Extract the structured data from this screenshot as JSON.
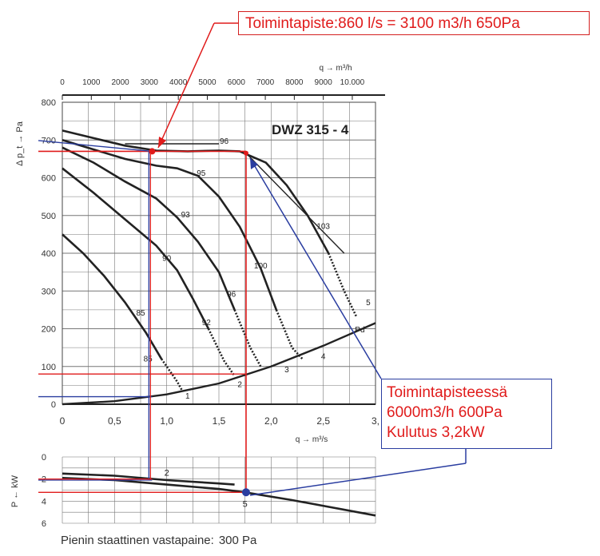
{
  "chart_data": {
    "type": "line",
    "title": "DWZ 315 - 4",
    "top_axis": {
      "label": "q → m³/h",
      "ticks": [
        "0",
        "1000",
        "2000",
        "3000",
        "4000",
        "5000",
        "6000",
        "7000",
        "8000",
        "9000",
        "10.000"
      ],
      "range": [
        0,
        10800
      ]
    },
    "bottom_axis": {
      "label": "q → m³/s",
      "ticks": [
        "0",
        "0,5",
        "1,0",
        "1,5",
        "2,0",
        "2,5",
        "3,"
      ],
      "range": [
        0,
        3.0
      ]
    },
    "pressure_axis": {
      "label": "Δ p_t → Pa",
      "ticks": [
        "0",
        "100",
        "200",
        "300",
        "400",
        "500",
        "600",
        "700",
        "800"
      ],
      "range": [
        0,
        800
      ]
    },
    "power_axis": {
      "label": "P ← kW",
      "ticks": [
        "0",
        "2",
        "4",
        "6"
      ],
      "range": [
        0,
        6
      ]
    },
    "pressure_curves": [
      {
        "id": "c5",
        "points": [
          [
            0,
            725
          ],
          [
            0.3,
            705
          ],
          [
            0.6,
            685
          ],
          [
            0.9,
            672
          ],
          [
            1.2,
            670
          ],
          [
            1.5,
            672
          ],
          [
            1.7,
            670
          ],
          [
            1.95,
            640
          ],
          [
            2.15,
            580
          ],
          [
            2.35,
            500
          ],
          [
            2.55,
            400
          ],
          [
            2.7,
            300
          ],
          [
            2.82,
            230
          ]
        ]
      },
      {
        "id": "c4",
        "points": [
          [
            0,
            700
          ],
          [
            0.3,
            675
          ],
          [
            0.6,
            650
          ],
          [
            0.9,
            632
          ],
          [
            1.1,
            625
          ],
          [
            1.3,
            605
          ],
          [
            1.5,
            550
          ],
          [
            1.7,
            470
          ],
          [
            1.9,
            360
          ],
          [
            2.05,
            250
          ],
          [
            2.2,
            150
          ],
          [
            2.3,
            120
          ]
        ]
      },
      {
        "id": "c3",
        "points": [
          [
            0,
            680
          ],
          [
            0.3,
            640
          ],
          [
            0.6,
            590
          ],
          [
            0.9,
            545
          ],
          [
            1.1,
            495
          ],
          [
            1.3,
            430
          ],
          [
            1.5,
            350
          ],
          [
            1.65,
            250
          ],
          [
            1.8,
            150
          ],
          [
            1.9,
            100
          ]
        ]
      },
      {
        "id": "c2",
        "points": [
          [
            0,
            625
          ],
          [
            0.3,
            560
          ],
          [
            0.6,
            490
          ],
          [
            0.9,
            420
          ],
          [
            1.1,
            355
          ],
          [
            1.25,
            280
          ],
          [
            1.4,
            200
          ],
          [
            1.55,
            115
          ],
          [
            1.65,
            75
          ]
        ]
      },
      {
        "id": "c1",
        "points": [
          [
            0,
            450
          ],
          [
            0.2,
            400
          ],
          [
            0.4,
            340
          ],
          [
            0.6,
            270
          ],
          [
            0.8,
            190
          ],
          [
            0.95,
            120
          ],
          [
            1.1,
            60
          ],
          [
            1.15,
            35
          ]
        ]
      }
    ],
    "efficiency_labels": [
      {
        "text": "96",
        "x": 1.55,
        "y": 690
      },
      {
        "text": "95",
        "x": 1.33,
        "y": 605
      },
      {
        "text": "93",
        "x": 1.18,
        "y": 495
      },
      {
        "text": "90",
        "x": 1.0,
        "y": 380
      },
      {
        "text": "85",
        "x": 0.75,
        "y": 235
      },
      {
        "text": "85",
        "x": 0.82,
        "y": 113
      },
      {
        "text": "92",
        "x": 1.38,
        "y": 210
      },
      {
        "text": "96",
        "x": 1.62,
        "y": 285
      },
      {
        "text": "100",
        "x": 1.9,
        "y": 360
      },
      {
        "text": "103",
        "x": 2.5,
        "y": 465
      }
    ],
    "curve_end_labels": [
      {
        "text": "1",
        "x": 1.2,
        "y": 15
      },
      {
        "text": "2",
        "x": 1.7,
        "y": 45
      },
      {
        "text": "3",
        "x": 2.15,
        "y": 85
      },
      {
        "text": "4",
        "x": 2.5,
        "y": 120
      },
      {
        "text": "5",
        "x": 2.93,
        "y": 262
      },
      {
        "text": "Pd",
        "x": 2.85,
        "y": 190
      }
    ],
    "efficiency_lines": [
      {
        "points": [
          [
            0.6,
            690
          ],
          [
            1.5,
            690
          ]
        ]
      },
      {
        "points": [
          [
            1.76,
            665
          ],
          [
            2.7,
            400
          ]
        ]
      }
    ],
    "system_curve_pd": {
      "name": "Pd",
      "points": [
        [
          0,
          0
        ],
        [
          0.5,
          8
        ],
        [
          1.0,
          26
        ],
        [
          1.5,
          55
        ],
        [
          2.0,
          100
        ],
        [
          2.5,
          155
        ],
        [
          3.0,
          215
        ]
      ]
    },
    "power_curves": [
      {
        "id": "p2",
        "points": [
          [
            0,
            1.5
          ],
          [
            0.5,
            1.7
          ],
          [
            1.0,
            2.1
          ],
          [
            1.5,
            2.4
          ],
          [
            1.65,
            2.5
          ]
        ]
      },
      {
        "id": "p5",
        "points": [
          [
            0,
            1.9
          ],
          [
            0.5,
            2.1
          ],
          [
            1.0,
            2.5
          ],
          [
            1.5,
            2.9
          ],
          [
            1.75,
            3.2
          ],
          [
            2.2,
            3.9
          ],
          [
            2.6,
            4.6
          ],
          [
            3.0,
            5.3
          ]
        ]
      }
    ],
    "power_labels": [
      {
        "text": "2",
        "x": 1.0,
        "y": 1.7
      },
      {
        "text": "5",
        "x": 1.75,
        "y": 4.5
      }
    ],
    "operating_point_1": {
      "x": 0.86,
      "y": 670,
      "color": "#e01b1b"
    },
    "operating_point_2": {
      "x": 1.76,
      "y": 665,
      "color": "#e01b1b"
    },
    "power_point": {
      "x": 1.76,
      "y": 3.2,
      "color": "#2a3da0"
    },
    "reference_lines": {
      "red_h_pressure": [
        670,
        80,
        65
      ],
      "blue_h_pressure": [
        20
      ],
      "red_h_power": [
        2.0,
        3.2
      ],
      "blue_v": [
        0.86
      ],
      "red_v": [
        1.76
      ]
    },
    "colors": {
      "red": "#e01b1b",
      "blue": "#2a3da0",
      "curve": "#222222",
      "grid": "#777777"
    }
  },
  "annotations": {
    "box1": "Toimintapiste:860 l/s = 3100 m3/h  650Pa",
    "box2": [
      "Toimintapisteessä",
      "6000m3/h  600Pa",
      "Kulutus 3,2kW"
    ]
  },
  "footer": {
    "label": "Pienin staattinen vastapaine:",
    "value": "300 Pa"
  }
}
